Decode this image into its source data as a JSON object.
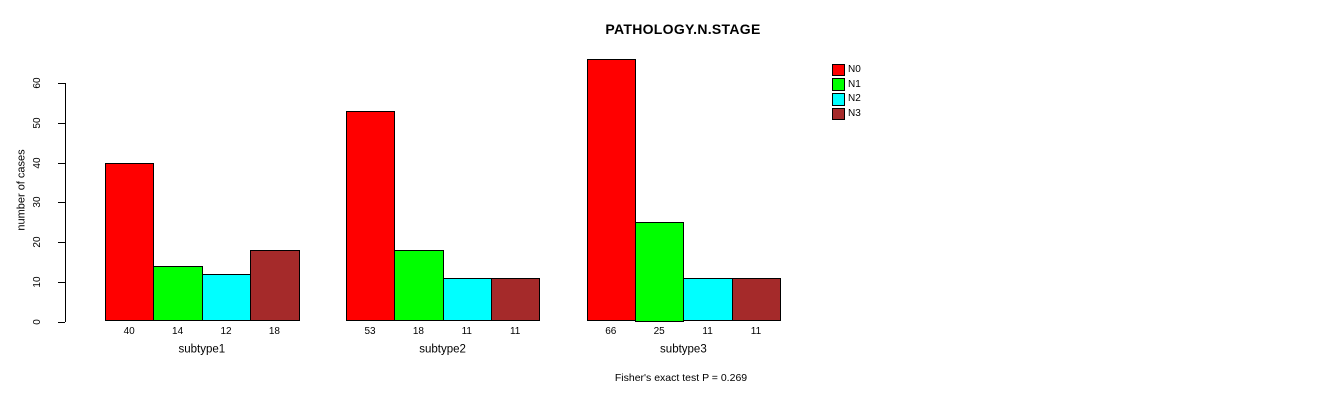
{
  "chart_data": {
    "type": "bar",
    "title": "PATHOLOGY.N.STAGE",
    "ylabel": "number of cases",
    "xlabel": "",
    "annotation": "Fisher's exact test P = 0.269",
    "categories": [
      "subtype1",
      "subtype2",
      "subtype3"
    ],
    "series": [
      {
        "name": "N0",
        "color": "#FF0000",
        "values": [
          40,
          53,
          66
        ]
      },
      {
        "name": "N1",
        "color": "#00FF00",
        "values": [
          14,
          18,
          25
        ]
      },
      {
        "name": "N2",
        "color": "#00FFFF",
        "values": [
          12,
          11,
          11
        ]
      },
      {
        "name": "N3",
        "color": "#A52A2A",
        "values": [
          18,
          11,
          11
        ]
      }
    ],
    "bar_value_labels": [
      [
        40,
        14,
        12,
        18
      ],
      [
        53,
        18,
        11,
        11
      ],
      [
        66,
        25,
        11,
        11
      ]
    ],
    "ylim": [
      0,
      60
    ],
    "yticks": [
      0,
      10,
      20,
      30,
      40,
      50,
      60
    ],
    "grid": false,
    "legend_position": "top-right",
    "axis_color": "#000000",
    "background_color": "#FFFFFF"
  }
}
